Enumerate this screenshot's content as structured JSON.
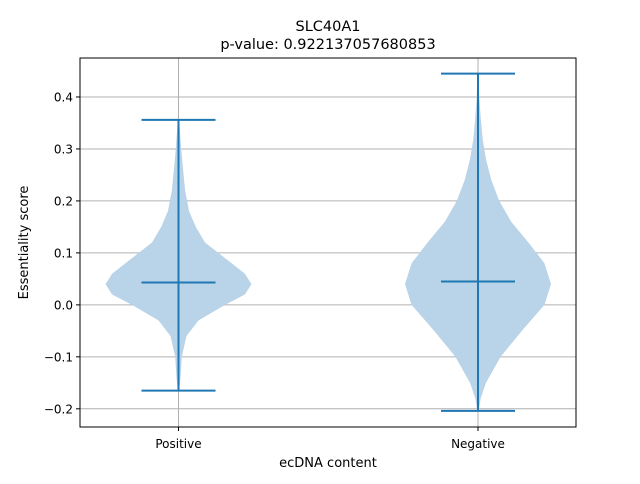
{
  "chart_data": {
    "type": "violin",
    "title": "SLC40A1",
    "subtitle": "p-value: 0.922137057680853",
    "xlabel": "ecDNA content",
    "ylabel": "Essentiality score",
    "categories": [
      "Positive",
      "Negative"
    ],
    "ylim": [
      -0.235,
      0.475
    ],
    "yticks": [
      -0.2,
      -0.1,
      0.0,
      0.1,
      0.2,
      0.3,
      0.4
    ],
    "ytick_labels": [
      "−0.2",
      "−0.1",
      "0.0",
      "0.1",
      "0.2",
      "0.3",
      "0.4"
    ],
    "grid": true,
    "color": "#1f77b4",
    "fill_color": "#b9d3e8",
    "violins": [
      {
        "category": "Positive",
        "min": -0.165,
        "max": 0.356,
        "median": 0.043,
        "density": [
          [
            -0.165,
            0.005
          ],
          [
            -0.14,
            0.015
          ],
          [
            -0.1,
            0.025
          ],
          [
            -0.06,
            0.06
          ],
          [
            -0.03,
            0.15
          ],
          [
            0.0,
            0.35
          ],
          [
            0.02,
            0.5
          ],
          [
            0.04,
            0.55
          ],
          [
            0.06,
            0.5
          ],
          [
            0.08,
            0.4
          ],
          [
            0.1,
            0.3
          ],
          [
            0.12,
            0.2
          ],
          [
            0.15,
            0.13
          ],
          [
            0.18,
            0.08
          ],
          [
            0.22,
            0.05
          ],
          [
            0.26,
            0.035
          ],
          [
            0.3,
            0.02
          ],
          [
            0.34,
            0.01
          ],
          [
            0.356,
            0.005
          ]
        ]
      },
      {
        "category": "Negative",
        "min": -0.204,
        "max": 0.445,
        "median": 0.045,
        "density": [
          [
            -0.204,
            0.005
          ],
          [
            -0.18,
            0.02
          ],
          [
            -0.15,
            0.06
          ],
          [
            -0.1,
            0.17
          ],
          [
            -0.05,
            0.33
          ],
          [
            0.0,
            0.5
          ],
          [
            0.04,
            0.55
          ],
          [
            0.08,
            0.5
          ],
          [
            0.12,
            0.38
          ],
          [
            0.16,
            0.25
          ],
          [
            0.2,
            0.16
          ],
          [
            0.24,
            0.1
          ],
          [
            0.28,
            0.06
          ],
          [
            0.32,
            0.035
          ],
          [
            0.36,
            0.02
          ],
          [
            0.4,
            0.01
          ],
          [
            0.445,
            0.004
          ]
        ]
      }
    ]
  }
}
